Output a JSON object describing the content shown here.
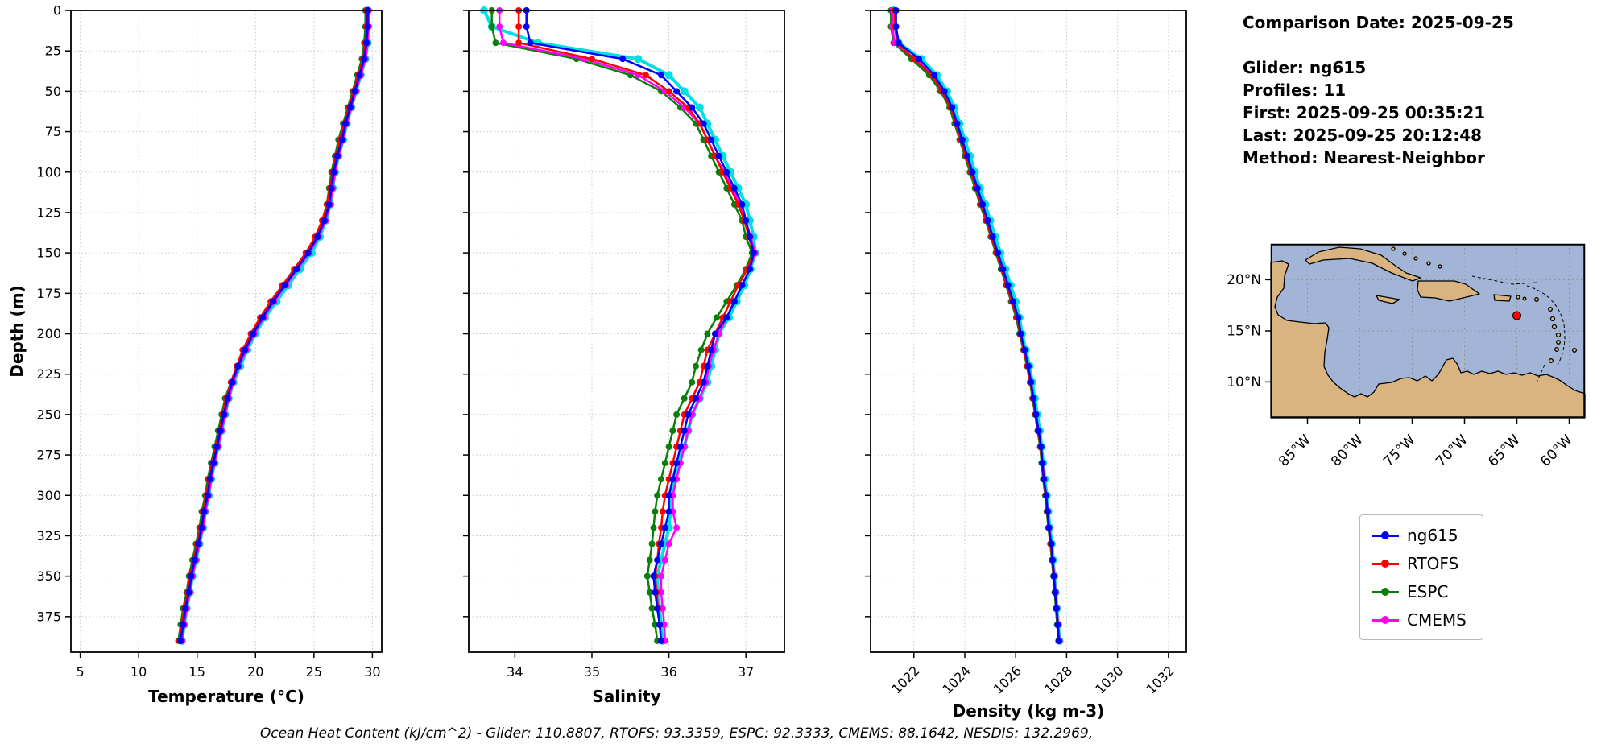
{
  "info_panel": {
    "lines": [
      "Comparison Date: 2025-09-25",
      "",
      "Glider: ng615",
      "Profiles: 11",
      "First: 2025-09-25 00:35:21",
      "Last: 2025-09-25 20:12:48",
      "Method: Nearest-Neighbor"
    ]
  },
  "legend": {
    "items": [
      {
        "label": "ng615",
        "color": "#0000ff"
      },
      {
        "label": "RTOFS",
        "color": "#ff0000"
      },
      {
        "label": "ESPC",
        "color": "#088008"
      },
      {
        "label": "CMEMS",
        "color": "#ff00ff"
      }
    ]
  },
  "caption": "Ocean Heat Content (kJ/cm^2) - Glider: 110.8807,  RTOFS: 93.3359,  ESPC: 92.3333,  CMEMS: 88.1642,  NESDIS: 132.2969,",
  "map": {
    "lat_ticks": [
      "20°N",
      "15°N",
      "10°N"
    ],
    "lon_ticks": [
      "85°W",
      "80°W",
      "75°W",
      "70°W",
      "65°W",
      "60°W"
    ],
    "ocean_color": "#a2b5d6",
    "land_color": "#d9b380",
    "marker_color": "#ff0000"
  },
  "depth_m": [
    0,
    10,
    20,
    30,
    40,
    50,
    60,
    70,
    80,
    90,
    100,
    110,
    120,
    130,
    140,
    150,
    160,
    170,
    180,
    190,
    200,
    210,
    220,
    230,
    240,
    250,
    260,
    270,
    280,
    290,
    300,
    310,
    320,
    330,
    340,
    350,
    360,
    370,
    380,
    390
  ],
  "chart_data": [
    {
      "id": "temperature-profile",
      "type": "line",
      "xlabel": "Temperature (°C)",
      "ylabel": "Depth (m)",
      "xlim": [
        4.2,
        30.8
      ],
      "xticks": [
        5,
        10,
        15,
        20,
        25,
        30
      ],
      "xtick_rotation": 0,
      "ylim": [
        0,
        397
      ],
      "yticks": [
        0,
        25,
        50,
        75,
        100,
        125,
        150,
        175,
        200,
        225,
        250,
        275,
        300,
        325,
        350,
        375
      ],
      "show_ytick_labels": true,
      "series": [
        {
          "name": "glider-raw",
          "color": "#00e0e0",
          "line_width": 4,
          "marker_radius": 5,
          "in_legend": false,
          "values": [
            29.6,
            29.55,
            29.6,
            29.4,
            29.0,
            28.6,
            28.2,
            27.8,
            27.5,
            27.1,
            26.8,
            26.6,
            26.4,
            26.0,
            25.5,
            24.8,
            23.8,
            22.8,
            21.8,
            20.8,
            20.0,
            19.3,
            18.7,
            18.1,
            17.7,
            17.4,
            17.1,
            16.8,
            16.5,
            16.2,
            16.0,
            15.7,
            15.5,
            15.2,
            14.9,
            14.6,
            14.4,
            14.1,
            13.9,
            13.7
          ]
        },
        {
          "name": "ESPC",
          "color": "#088008",
          "line_width": 2.5,
          "marker_radius": 4,
          "in_legend": true,
          "values": [
            29.4,
            29.4,
            29.3,
            29.1,
            28.7,
            28.3,
            27.9,
            27.5,
            27.1,
            26.8,
            26.5,
            26.3,
            26.1,
            25.8,
            25.2,
            24.4,
            23.4,
            22.4,
            21.4,
            20.5,
            19.7,
            19.0,
            18.4,
            17.9,
            17.4,
            17.1,
            16.8,
            16.5,
            16.2,
            15.9,
            15.7,
            15.4,
            15.2,
            14.9,
            14.6,
            14.3,
            14.1,
            13.8,
            13.6,
            13.4
          ]
        },
        {
          "name": "CMEMS",
          "color": "#ff00ff",
          "line_width": 2.5,
          "marker_radius": 4,
          "in_legend": true,
          "values": [
            29.7,
            29.7,
            29.6,
            29.4,
            29.0,
            28.6,
            28.2,
            27.8,
            27.5,
            27.1,
            26.8,
            26.6,
            26.4,
            26.0,
            25.4,
            24.6,
            23.6,
            22.6,
            21.6,
            20.7,
            19.9,
            19.2,
            18.6,
            18.1,
            17.7,
            17.4,
            17.1,
            16.8,
            16.5,
            16.2,
            16.0,
            15.7,
            15.5,
            15.2,
            14.9,
            14.6,
            14.4,
            14.1,
            13.9,
            13.7
          ]
        },
        {
          "name": "RTOFS",
          "color": "#ff0000",
          "line_width": 2.5,
          "marker_radius": 4,
          "in_legend": true,
          "values": [
            29.5,
            29.5,
            29.4,
            29.2,
            28.8,
            28.4,
            28.0,
            27.6,
            27.2,
            26.9,
            26.6,
            26.4,
            26.1,
            25.7,
            25.1,
            24.3,
            23.3,
            22.3,
            21.3,
            20.4,
            19.6,
            18.9,
            18.4,
            17.9,
            17.5,
            17.2,
            16.9,
            16.6,
            16.3,
            16.0,
            15.8,
            15.5,
            15.3,
            15.0,
            14.7,
            14.4,
            14.2,
            13.9,
            13.7,
            13.5
          ]
        },
        {
          "name": "ng615",
          "color": "#0000ff",
          "line_width": 2.5,
          "marker_radius": 4,
          "in_legend": true,
          "values": [
            29.6,
            29.6,
            29.5,
            29.3,
            28.9,
            28.5,
            28.1,
            27.7,
            27.4,
            27.0,
            26.7,
            26.5,
            26.3,
            25.9,
            25.3,
            24.5,
            23.5,
            22.5,
            21.5,
            20.6,
            19.8,
            19.1,
            18.5,
            18.0,
            17.6,
            17.3,
            17.0,
            16.7,
            16.4,
            16.1,
            15.9,
            15.6,
            15.4,
            15.1,
            14.8,
            14.5,
            14.3,
            14.0,
            13.8,
            13.6
          ]
        }
      ]
    },
    {
      "id": "salinity-profile",
      "type": "line",
      "xlabel": "Salinity",
      "ylabel": "",
      "xlim": [
        33.4,
        37.5
      ],
      "xticks": [
        34,
        35,
        36,
        37
      ],
      "xtick_rotation": 0,
      "ylim": [
        0,
        397
      ],
      "yticks": [
        0,
        25,
        50,
        75,
        100,
        125,
        150,
        175,
        200,
        225,
        250,
        275,
        300,
        325,
        350,
        375
      ],
      "show_ytick_labels": false,
      "series": [
        {
          "name": "glider-raw",
          "color": "#00e0e0",
          "line_width": 4,
          "marker_radius": 5,
          "in_legend": false,
          "values": [
            33.6,
            33.7,
            34.3,
            35.6,
            36.0,
            36.2,
            36.4,
            36.5,
            36.6,
            36.7,
            36.8,
            36.9,
            37.0,
            37.05,
            37.1,
            37.12,
            37.06,
            36.98,
            36.88,
            36.78,
            36.65,
            36.6,
            36.55,
            36.5,
            36.4,
            36.3,
            36.25,
            36.2,
            36.12,
            36.08,
            36.03,
            36.02,
            36.0,
            35.95,
            35.9,
            35.85,
            35.86,
            35.88,
            35.9,
            35.92
          ]
        },
        {
          "name": "ESPC",
          "color": "#088008",
          "line_width": 2.5,
          "marker_radius": 4,
          "in_legend": true,
          "values": [
            33.7,
            33.7,
            33.75,
            34.8,
            35.5,
            35.9,
            36.15,
            36.35,
            36.45,
            36.55,
            36.65,
            36.75,
            36.85,
            36.95,
            37.0,
            37.08,
            37.0,
            36.88,
            36.75,
            36.62,
            36.5,
            36.42,
            36.35,
            36.3,
            36.2,
            36.1,
            36.05,
            36.0,
            35.95,
            35.9,
            35.85,
            35.82,
            35.8,
            35.78,
            35.75,
            35.72,
            35.75,
            35.78,
            35.82,
            35.85
          ]
        },
        {
          "name": "CMEMS",
          "color": "#ff00ff",
          "line_width": 2.5,
          "marker_radius": 4,
          "in_legend": true,
          "values": [
            33.8,
            33.8,
            33.85,
            34.9,
            35.6,
            35.95,
            36.2,
            36.4,
            36.5,
            36.6,
            36.72,
            36.82,
            36.92,
            37.0,
            37.06,
            37.12,
            37.05,
            36.95,
            36.85,
            36.75,
            36.65,
            36.58,
            36.52,
            36.48,
            36.4,
            36.3,
            36.25,
            36.2,
            36.15,
            36.1,
            36.05,
            36.05,
            36.1,
            36.0,
            35.95,
            35.9,
            35.9,
            35.92,
            35.94,
            35.95
          ]
        },
        {
          "name": "RTOFS",
          "color": "#ff0000",
          "line_width": 2.5,
          "marker_radius": 4,
          "in_legend": true,
          "values": [
            34.05,
            34.05,
            34.05,
            35.0,
            35.7,
            36.0,
            36.25,
            36.4,
            36.5,
            36.6,
            36.7,
            36.8,
            36.9,
            36.98,
            37.04,
            37.1,
            37.02,
            36.9,
            36.8,
            36.7,
            36.6,
            36.5,
            36.45,
            36.4,
            36.3,
            36.2,
            36.15,
            36.1,
            36.05,
            36.0,
            35.95,
            35.92,
            35.9,
            35.87,
            35.85,
            35.82,
            35.84,
            35.86,
            35.88,
            35.9
          ]
        },
        {
          "name": "ng615",
          "color": "#0000ff",
          "line_width": 2.5,
          "marker_radius": 4,
          "in_legend": true,
          "values": [
            34.15,
            34.15,
            34.2,
            35.4,
            35.9,
            36.1,
            36.3,
            36.45,
            36.55,
            36.65,
            36.75,
            36.85,
            36.95,
            37.0,
            37.05,
            37.1,
            37.05,
            36.95,
            36.85,
            36.75,
            36.6,
            36.55,
            36.5,
            36.45,
            36.35,
            36.25,
            36.2,
            36.15,
            36.1,
            36.05,
            36.0,
            36.0,
            35.95,
            35.9,
            35.85,
            35.8,
            35.82,
            35.85,
            35.88,
            35.9
          ]
        }
      ]
    },
    {
      "id": "density-profile",
      "type": "line",
      "xlabel": "Density (kg m-3)",
      "ylabel": "",
      "xlim": [
        1020.3,
        1032.7
      ],
      "xticks": [
        1022,
        1024,
        1026,
        1028,
        1030,
        1032
      ],
      "xtick_rotation": 45,
      "ylim": [
        0,
        397
      ],
      "yticks": [
        0,
        25,
        50,
        75,
        100,
        125,
        150,
        175,
        200,
        225,
        250,
        275,
        300,
        325,
        350,
        375
      ],
      "show_ytick_labels": false,
      "series": [
        {
          "name": "glider-raw",
          "color": "#00e0e0",
          "line_width": 4,
          "marker_radius": 5,
          "in_legend": false,
          "values": [
            1021.2,
            1021.25,
            1021.4,
            1022.3,
            1022.9,
            1023.3,
            1023.6,
            1023.8,
            1024.0,
            1024.2,
            1024.4,
            1024.6,
            1024.8,
            1025.0,
            1025.2,
            1025.4,
            1025.6,
            1025.8,
            1026.0,
            1026.15,
            1026.25,
            1026.4,
            1026.55,
            1026.65,
            1026.75,
            1026.85,
            1026.95,
            1027.02,
            1027.08,
            1027.15,
            1027.22,
            1027.28,
            1027.34,
            1027.42,
            1027.47,
            1027.52,
            1027.57,
            1027.62,
            1027.67,
            1027.72
          ]
        },
        {
          "name": "ESPC",
          "color": "#088008",
          "line_width": 2.5,
          "marker_radius": 4,
          "in_legend": true,
          "values": [
            1021.1,
            1021.1,
            1021.2,
            1021.9,
            1022.6,
            1023.05,
            1023.4,
            1023.6,
            1023.8,
            1024.0,
            1024.2,
            1024.4,
            1024.6,
            1024.82,
            1025.02,
            1025.22,
            1025.42,
            1025.62,
            1025.82,
            1026.02,
            1026.15,
            1026.3,
            1026.44,
            1026.56,
            1026.66,
            1026.76,
            1026.86,
            1026.96,
            1027.02,
            1027.08,
            1027.16,
            1027.22,
            1027.28,
            1027.36,
            1027.42,
            1027.48,
            1027.53,
            1027.58,
            1027.63,
            1027.68
          ]
        },
        {
          "name": "CMEMS",
          "color": "#ff00ff",
          "line_width": 2.5,
          "marker_radius": 4,
          "in_legend": true,
          "values": [
            1021.15,
            1021.15,
            1021.25,
            1022.05,
            1022.75,
            1023.15,
            1023.5,
            1023.7,
            1023.9,
            1024.1,
            1024.3,
            1024.5,
            1024.7,
            1024.9,
            1025.1,
            1025.3,
            1025.5,
            1025.7,
            1025.9,
            1026.08,
            1026.2,
            1026.34,
            1026.48,
            1026.6,
            1026.7,
            1026.8,
            1026.9,
            1027.0,
            1027.06,
            1027.12,
            1027.2,
            1027.26,
            1027.32,
            1027.4,
            1027.46,
            1027.52,
            1027.57,
            1027.62,
            1027.67,
            1027.72
          ]
        },
        {
          "name": "RTOFS",
          "color": "#ff0000",
          "line_width": 2.5,
          "marker_radius": 4,
          "in_legend": true,
          "values": [
            1021.25,
            1021.25,
            1021.35,
            1022.0,
            1022.7,
            1023.1,
            1023.45,
            1023.65,
            1023.85,
            1024.05,
            1024.25,
            1024.45,
            1024.65,
            1024.85,
            1025.05,
            1025.25,
            1025.45,
            1025.65,
            1025.85,
            1026.05,
            1026.18,
            1026.32,
            1026.46,
            1026.58,
            1026.68,
            1026.78,
            1026.88,
            1026.98,
            1027.04,
            1027.1,
            1027.18,
            1027.24,
            1027.3,
            1027.38,
            1027.44,
            1027.5,
            1027.55,
            1027.6,
            1027.65,
            1027.7
          ]
        },
        {
          "name": "ng615",
          "color": "#0000ff",
          "line_width": 2.5,
          "marker_radius": 4,
          "in_legend": true,
          "values": [
            1021.3,
            1021.3,
            1021.4,
            1022.2,
            1022.8,
            1023.2,
            1023.5,
            1023.7,
            1023.9,
            1024.1,
            1024.3,
            1024.5,
            1024.7,
            1024.9,
            1025.1,
            1025.3,
            1025.5,
            1025.7,
            1025.9,
            1026.1,
            1026.2,
            1026.35,
            1026.5,
            1026.6,
            1026.7,
            1026.8,
            1026.9,
            1027.0,
            1027.05,
            1027.1,
            1027.2,
            1027.25,
            1027.3,
            1027.4,
            1027.45,
            1027.5,
            1027.55,
            1027.6,
            1027.65,
            1027.7
          ]
        }
      ]
    }
  ]
}
